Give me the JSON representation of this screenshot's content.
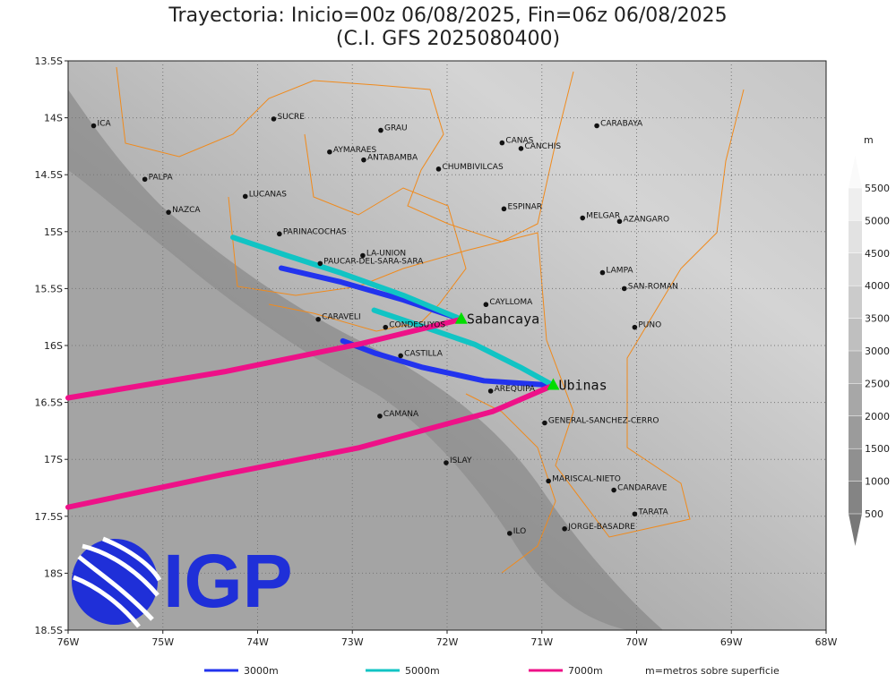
{
  "map": {
    "title": "Trayectoria: Inicio=00z 06/08/2025, Fin=06z 06/08/2025",
    "subtitle": "(C.I. GFS 2025080400)",
    "xlim": [
      -76,
      -68
    ],
    "ylim": [
      -18.5,
      -13.5
    ],
    "xticks": [
      {
        "value": -76,
        "label": "76W"
      },
      {
        "value": -75,
        "label": "75W"
      },
      {
        "value": -74,
        "label": "74W"
      },
      {
        "value": -73,
        "label": "73W"
      },
      {
        "value": -72,
        "label": "72W"
      },
      {
        "value": -71,
        "label": "71W"
      },
      {
        "value": -70,
        "label": "70W"
      },
      {
        "value": -69,
        "label": "69W"
      },
      {
        "value": -68,
        "label": "68W"
      }
    ],
    "yticks": [
      {
        "value": -13.5,
        "label": "13.5S"
      },
      {
        "value": -14,
        "label": "14S"
      },
      {
        "value": -14.5,
        "label": "14.5S"
      },
      {
        "value": -15,
        "label": "15S"
      },
      {
        "value": -15.5,
        "label": "15.5S"
      },
      {
        "value": -16,
        "label": "16S"
      },
      {
        "value": -16.5,
        "label": "16.5S"
      },
      {
        "value": -17,
        "label": "17S"
      },
      {
        "value": -17.5,
        "label": "17.5S"
      },
      {
        "value": -18,
        "label": "18S"
      },
      {
        "value": -18.5,
        "label": "18.5S"
      }
    ],
    "grid": true,
    "places": [
      {
        "name": "ICA",
        "lon": -75.73,
        "lat": -14.07
      },
      {
        "name": "SUCRE",
        "lon": -73.83,
        "lat": -14.01
      },
      {
        "name": "GRAU",
        "lon": -72.7,
        "lat": -14.11
      },
      {
        "name": "AYMARAES",
        "lon": -73.24,
        "lat": -14.3
      },
      {
        "name": "ANTABAMBA",
        "lon": -72.88,
        "lat": -14.37
      },
      {
        "name": "CANAS",
        "lon": -71.42,
        "lat": -14.22
      },
      {
        "name": "CANCHIS",
        "lon": -71.22,
        "lat": -14.27
      },
      {
        "name": "CARABAYA",
        "lon": -70.42,
        "lat": -14.07
      },
      {
        "name": "CHUMBIVILCAS",
        "lon": -72.09,
        "lat": -14.45
      },
      {
        "name": "PALPA",
        "lon": -75.19,
        "lat": -14.54
      },
      {
        "name": "LUCANAS",
        "lon": -74.13,
        "lat": -14.69
      },
      {
        "name": "NAZCA",
        "lon": -74.94,
        "lat": -14.83
      },
      {
        "name": "ESPINAR",
        "lon": -71.4,
        "lat": -14.8
      },
      {
        "name": "MELGAR",
        "lon": -70.57,
        "lat": -14.88
      },
      {
        "name": "AZANGARO",
        "lon": -70.18,
        "lat": -14.91
      },
      {
        "name": "PARINACOCHAS",
        "lon": -73.77,
        "lat": -15.02
      },
      {
        "name": "LA-UNION",
        "lon": -72.89,
        "lat": -15.21
      },
      {
        "name": "PAUCAR-DEL-SARA-SARA",
        "lon": -73.34,
        "lat": -15.28
      },
      {
        "name": "LAMPA",
        "lon": -70.36,
        "lat": -15.36
      },
      {
        "name": "SAN-ROMAN",
        "lon": -70.13,
        "lat": -15.5
      },
      {
        "name": "CAYLLOMA",
        "lon": -71.59,
        "lat": -15.64
      },
      {
        "name": "CARAVELI",
        "lon": -73.36,
        "lat": -15.77
      },
      {
        "name": "CONDESUYOS",
        "lon": -72.65,
        "lat": -15.84
      },
      {
        "name": "PUNO",
        "lon": -70.02,
        "lat": -15.84
      },
      {
        "name": "CASTILLA",
        "lon": -72.49,
        "lat": -16.09
      },
      {
        "name": "AREQUIPA",
        "lon": -71.54,
        "lat": -16.4
      },
      {
        "name": "CAMANA",
        "lon": -72.71,
        "lat": -16.62
      },
      {
        "name": "GENERAL-SANCHEZ-CERRO",
        "lon": -70.97,
        "lat": -16.68
      },
      {
        "name": "ISLAY",
        "lon": -72.01,
        "lat": -17.03
      },
      {
        "name": "MARISCAL-NIETO",
        "lon": -70.93,
        "lat": -17.19
      },
      {
        "name": "CANDARAVE",
        "lon": -70.24,
        "lat": -17.27
      },
      {
        "name": "TARATA",
        "lon": -70.02,
        "lat": -17.48
      },
      {
        "name": "JORGE-BASADRE",
        "lon": -70.76,
        "lat": -17.61
      },
      {
        "name": "ILO",
        "lon": -71.34,
        "lat": -17.65
      }
    ],
    "volcanoes": [
      {
        "name": "Sabancaya",
        "lon": -71.85,
        "lat": -15.77,
        "color": "#00dd00"
      },
      {
        "name": "Ubinas",
        "lon": -70.88,
        "lat": -16.35,
        "color": "#00dd00"
      }
    ],
    "trajectories": [
      {
        "name": "3000m",
        "color": "#2233ee",
        "paths": [
          {
            "lon": [
              -71.85,
              -72.46,
              -73.13,
              -73.75
            ],
            "lat": [
              -15.77,
              -15.6,
              -15.44,
              -15.32
            ]
          },
          {
            "lon": [
              -70.88,
              -71.61,
              -72.27,
              -72.75,
              -73.1
            ],
            "lat": [
              -16.35,
              -16.31,
              -16.19,
              -16.07,
              -15.96
            ]
          }
        ]
      },
      {
        "name": "5000m",
        "color": "#11c4c4",
        "paths": [
          {
            "lon": [
              -71.85,
              -72.46,
              -73.13,
              -73.69,
              -74.26
            ],
            "lat": [
              -15.77,
              -15.56,
              -15.36,
              -15.21,
              -15.05
            ]
          },
          {
            "lon": [
              -70.88,
              -71.23,
              -71.71,
              -72.27,
              -72.77
            ],
            "lat": [
              -16.35,
              -16.19,
              -15.99,
              -15.83,
              -15.69
            ]
          }
        ]
      },
      {
        "name": "7000m",
        "color": "#ee1188",
        "paths": [
          {
            "lon": [
              -71.85,
              -72.94,
              -74.35,
              -76
            ],
            "lat": [
              -15.77,
              -15.99,
              -16.23,
              -16.46
            ]
          },
          {
            "lon": [
              -70.88,
              -71.52,
              -72.94,
              -74.35,
              -76
            ],
            "lat": [
              -16.35,
              -16.58,
              -16.9,
              -17.13,
              -17.42
            ]
          }
        ]
      }
    ],
    "legend_note": "m=metros sobre superficie",
    "colorbar": {
      "unit": "m",
      "lim": [
        500,
        5500
      ],
      "ticks": [
        500,
        1000,
        1500,
        2000,
        2500,
        3000,
        3500,
        4000,
        4500,
        5000,
        5500
      ]
    },
    "logo": "IGP"
  }
}
